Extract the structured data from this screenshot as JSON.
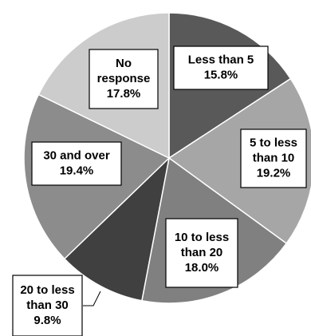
{
  "chart_data": {
    "type": "pie",
    "title": "",
    "start_angle_deg": 0,
    "direction": "clockwise",
    "slices": [
      {
        "label": "Less than 5",
        "label_lines": [
          "Less than 5",
          "15.8%"
        ],
        "value": 15.8,
        "color": "#595959"
      },
      {
        "label": "5 to less than 10",
        "label_lines": [
          "5 to less",
          "than 10",
          "19.2%"
        ],
        "value": 19.2,
        "color": "#a6a6a6"
      },
      {
        "label": "10 to less than 20",
        "label_lines": [
          "10 to less",
          "than 20",
          "18.0%"
        ],
        "value": 18.0,
        "color": "#808080"
      },
      {
        "label": "20 to less than 30",
        "label_lines": [
          "20 to less",
          "than 30",
          "9.8%"
        ],
        "value": 9.8,
        "color": "#404040"
      },
      {
        "label": "30 and over",
        "label_lines": [
          "30 and over",
          "19.4%"
        ],
        "value": 19.4,
        "color": "#8c8c8c"
      },
      {
        "label": "No response",
        "label_lines": [
          "No",
          "response",
          "17.8%"
        ],
        "value": 17.8,
        "color": "#cccccc"
      }
    ]
  }
}
